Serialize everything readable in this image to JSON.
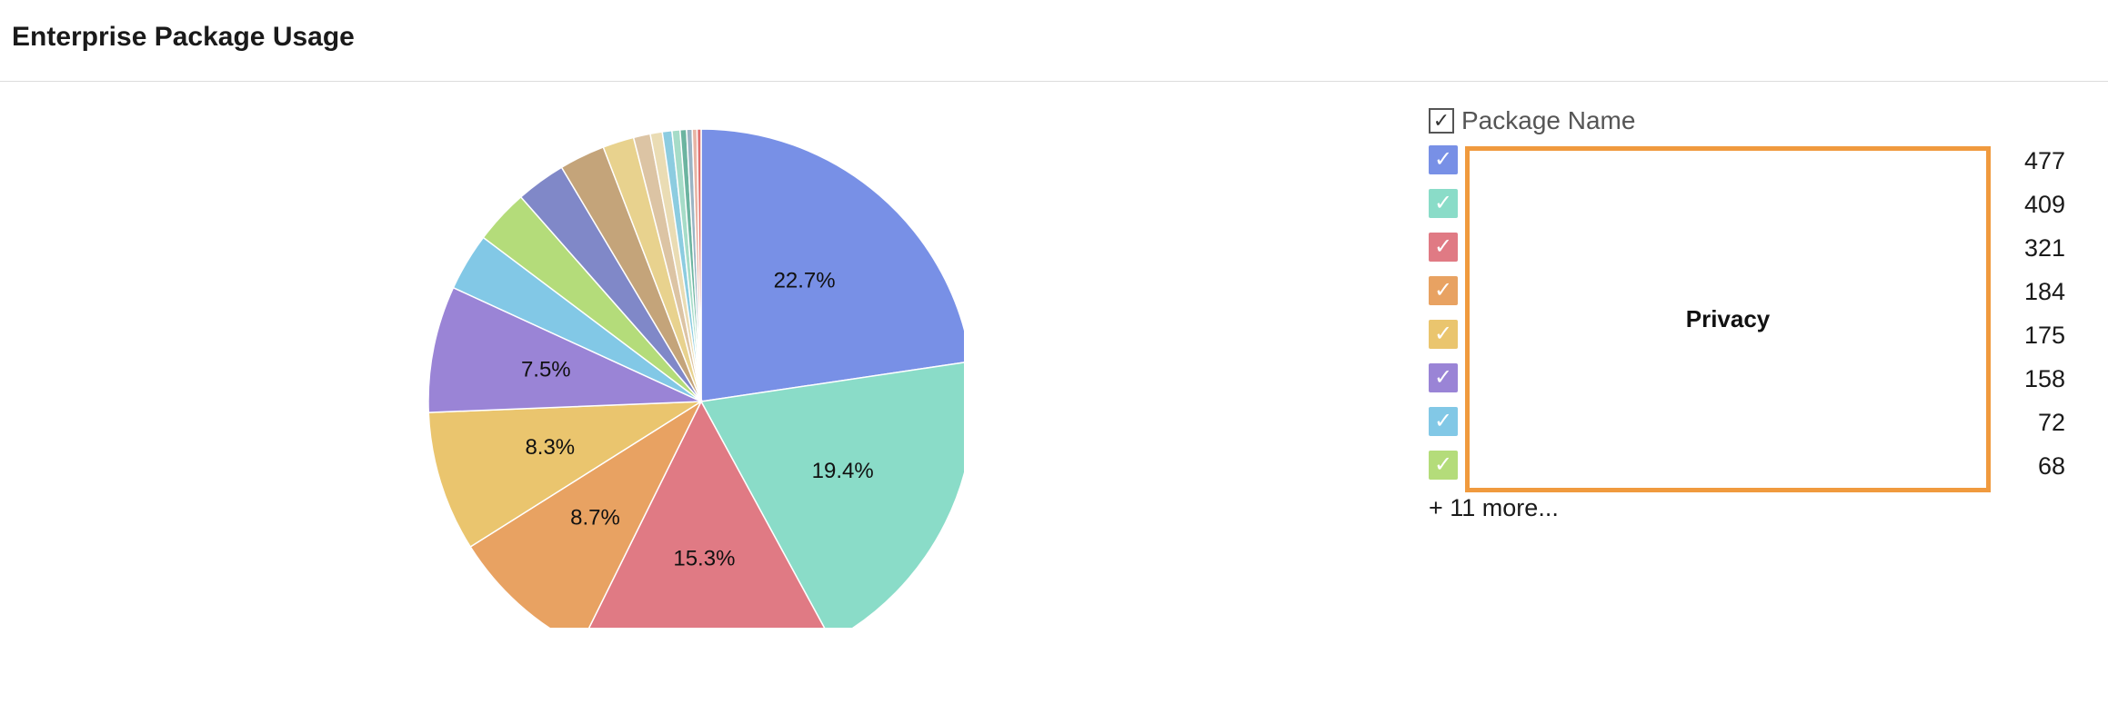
{
  "header": {
    "title": "Enterprise Package Usage"
  },
  "legend": {
    "header_label": "Package Name",
    "header_check": "✓",
    "rows": [
      {
        "color": "#7890e6",
        "value": "477",
        "check": "✓"
      },
      {
        "color": "#8adcc8",
        "value": "409",
        "check": "✓"
      },
      {
        "color": "#e07a84",
        "value": "321",
        "check": "✓"
      },
      {
        "color": "#e8a262",
        "value": "184",
        "check": "✓"
      },
      {
        "color": "#eac56e",
        "value": "175",
        "check": "✓"
      },
      {
        "color": "#9a84d6",
        "value": "158",
        "check": "✓"
      },
      {
        "color": "#82c8e6",
        "value": "72",
        "check": "✓"
      },
      {
        "color": "#b4dc7a",
        "value": "68",
        "check": "✓"
      }
    ],
    "more_label": "+ 11 more...",
    "redaction_label": "Privacy",
    "redaction_color": "#f09a3e"
  },
  "chart_data": {
    "type": "pie",
    "title": "Enterprise Package Usage",
    "legend_title": "Package Name",
    "legend_position": "right",
    "values": [
      477,
      409,
      321,
      184,
      175,
      158,
      72,
      68,
      62,
      57,
      39,
      21,
      15,
      12,
      10,
      8,
      7,
      6,
      5
    ],
    "percent_labels": [
      "22.7%",
      "19.4%",
      "15.3%",
      "8.7%",
      "8.3%",
      "7.5%",
      "",
      "",
      "",
      "",
      "",
      "",
      "",
      "",
      "",
      "",
      "",
      "",
      ""
    ],
    "colors": [
      "#7890e6",
      "#8adcc8",
      "#e07a84",
      "#e8a262",
      "#eac56e",
      "#9a84d6",
      "#82c8e6",
      "#b4dc7a",
      "#8088c8",
      "#c4a47a",
      "#e8d28e",
      "#dcc4a4",
      "#eadcb4",
      "#8ccce0",
      "#a6dcc8",
      "#6cb4a0",
      "#9ab4c4",
      "#e8b4a4",
      "#e07070"
    ]
  }
}
